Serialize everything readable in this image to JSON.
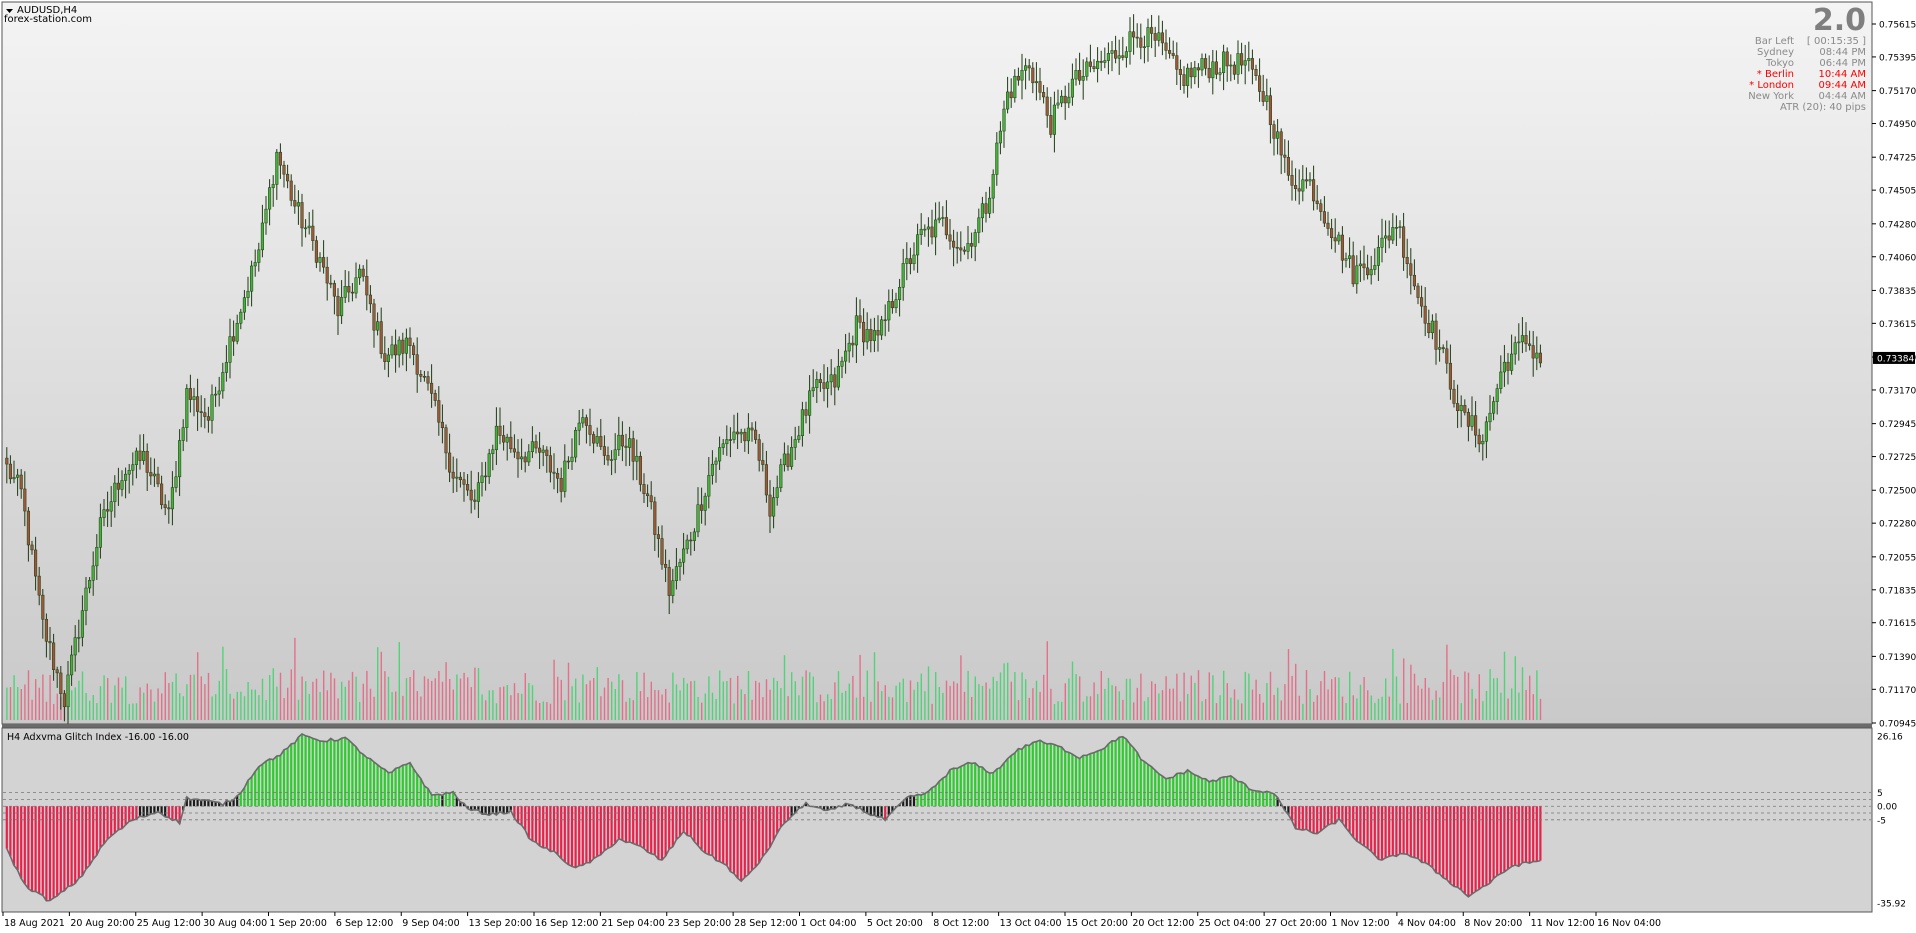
{
  "chart_title": {
    "symbol": "AUDUSD,H4",
    "site": "forex-station.com"
  },
  "info_panel": {
    "big_value": "2.0",
    "rows": [
      {
        "name": "Bar Left",
        "value": "[ 00:15:35 ]",
        "highlight": false
      },
      {
        "name": "Sydney",
        "value": "08:44 PM",
        "highlight": false
      },
      {
        "name": "Tokyo",
        "value": "06:44 PM",
        "highlight": false
      },
      {
        "name": "* Berlin",
        "value": "10:44 AM",
        "highlight": true
      },
      {
        "name": "* London",
        "value": "09:44 AM",
        "highlight": true
      },
      {
        "name": "New York",
        "value": "04:44 AM",
        "highlight": false
      }
    ],
    "atr": "ATR (20): 40 pips"
  },
  "colors": {
    "candle_up": "#46b03a",
    "candle_down": "#9a5a3a",
    "volume_up": "#3cd46a",
    "volume_down": "#e8607e",
    "hist_up": "#2ecb2e",
    "hist_down": "#e8204a",
    "current_price_bg": "#000000"
  },
  "chart_data": [
    {
      "type": "candlestick",
      "name": "price",
      "yticks": [
        "0.75615",
        "0.75395",
        "0.75170",
        "0.74950",
        "0.74725",
        "0.74505",
        "0.74280",
        "0.74060",
        "0.73835",
        "0.73615",
        "0.73390",
        "0.73170",
        "0.72945",
        "0.72725",
        "0.72500",
        "0.72280",
        "0.72055",
        "0.71835",
        "0.71615",
        "0.71390",
        "0.71170",
        "0.70945"
      ],
      "ylim": [
        0.70945,
        0.75615
      ],
      "current_price": "0.73384",
      "close_path": [
        {
          "bar": 0,
          "price": 0.7265
        },
        {
          "bar": 4,
          "price": 0.7248
        },
        {
          "bar": 10,
          "price": 0.716
        },
        {
          "bar": 16,
          "price": 0.711
        },
        {
          "bar": 21,
          "price": 0.717
        },
        {
          "bar": 26,
          "price": 0.7225
        },
        {
          "bar": 32,
          "price": 0.7262
        },
        {
          "bar": 38,
          "price": 0.7272
        },
        {
          "bar": 45,
          "price": 0.7232
        },
        {
          "bar": 50,
          "price": 0.7315
        },
        {
          "bar": 56,
          "price": 0.7298
        },
        {
          "bar": 62,
          "price": 0.735
        },
        {
          "bar": 70,
          "price": 0.741
        },
        {
          "bar": 75,
          "price": 0.7475
        },
        {
          "bar": 80,
          "price": 0.744
        },
        {
          "bar": 86,
          "price": 0.741
        },
        {
          "bar": 92,
          "price": 0.737
        },
        {
          "bar": 98,
          "price": 0.7395
        },
        {
          "bar": 105,
          "price": 0.734
        },
        {
          "bar": 112,
          "price": 0.7348
        },
        {
          "bar": 118,
          "price": 0.731
        },
        {
          "bar": 124,
          "price": 0.7262
        },
        {
          "bar": 130,
          "price": 0.724
        },
        {
          "bar": 136,
          "price": 0.729
        },
        {
          "bar": 142,
          "price": 0.7275
        },
        {
          "bar": 148,
          "price": 0.7275
        },
        {
          "bar": 154,
          "price": 0.7255
        },
        {
          "bar": 160,
          "price": 0.7305
        },
        {
          "bar": 166,
          "price": 0.727
        },
        {
          "bar": 172,
          "price": 0.7285
        },
        {
          "bar": 178,
          "price": 0.7245
        },
        {
          "bar": 184,
          "price": 0.7183
        },
        {
          "bar": 190,
          "price": 0.722
        },
        {
          "bar": 196,
          "price": 0.7268
        },
        {
          "bar": 202,
          "price": 0.729
        },
        {
          "bar": 208,
          "price": 0.7282
        },
        {
          "bar": 212,
          "price": 0.724
        },
        {
          "bar": 218,
          "price": 0.728
        },
        {
          "bar": 224,
          "price": 0.7315
        },
        {
          "bar": 230,
          "price": 0.7322
        },
        {
          "bar": 236,
          "price": 0.736
        },
        {
          "bar": 242,
          "price": 0.735
        },
        {
          "bar": 248,
          "price": 0.739
        },
        {
          "bar": 254,
          "price": 0.742
        },
        {
          "bar": 260,
          "price": 0.7428
        },
        {
          "bar": 266,
          "price": 0.741
        },
        {
          "bar": 272,
          "price": 0.744
        },
        {
          "bar": 278,
          "price": 0.7515
        },
        {
          "bar": 284,
          "price": 0.7535
        },
        {
          "bar": 290,
          "price": 0.7495
        },
        {
          "bar": 296,
          "price": 0.7522
        },
        {
          "bar": 302,
          "price": 0.7532
        },
        {
          "bar": 308,
          "price": 0.7542
        },
        {
          "bar": 314,
          "price": 0.7555
        },
        {
          "bar": 320,
          "price": 0.7548
        },
        {
          "bar": 326,
          "price": 0.7525
        },
        {
          "bar": 332,
          "price": 0.7532
        },
        {
          "bar": 338,
          "price": 0.7535
        },
        {
          "bar": 344,
          "price": 0.7535
        },
        {
          "bar": 350,
          "price": 0.751
        },
        {
          "bar": 356,
          "price": 0.7458
        },
        {
          "bar": 362,
          "price": 0.7455
        },
        {
          "bar": 368,
          "price": 0.7425
        },
        {
          "bar": 374,
          "price": 0.7395
        },
        {
          "bar": 380,
          "price": 0.7405
        },
        {
          "bar": 386,
          "price": 0.743
        },
        {
          "bar": 392,
          "price": 0.738
        },
        {
          "bar": 398,
          "price": 0.7345
        },
        {
          "bar": 404,
          "price": 0.73
        },
        {
          "bar": 410,
          "price": 0.7285
        },
        {
          "bar": 416,
          "price": 0.7335
        },
        {
          "bar": 422,
          "price": 0.735
        },
        {
          "bar": 426,
          "price": 0.7338
        }
      ],
      "volume_max": 100
    },
    {
      "type": "bar",
      "name": "H4 Adxvma Glitch Index -16.00 -16.00",
      "title": "H4 Adxvma Glitch Index -16.00 -16.00",
      "yticks": [
        "26.16",
        "5",
        "0.00",
        "-5",
        "-35.92"
      ],
      "levels": [
        5,
        2.5,
        0,
        -2.5,
        -5
      ],
      "ylim": [
        -35.92,
        26.16
      ],
      "value_path": [
        {
          "bar": 0,
          "value": -16
        },
        {
          "bar": 5,
          "value": -29
        },
        {
          "bar": 12,
          "value": -35
        },
        {
          "bar": 20,
          "value": -27
        },
        {
          "bar": 28,
          "value": -12
        },
        {
          "bar": 35,
          "value": -5
        },
        {
          "bar": 42,
          "value": -2
        },
        {
          "bar": 48,
          "value": -6
        },
        {
          "bar": 50,
          "value": 3
        },
        {
          "bar": 55,
          "value": 2
        },
        {
          "bar": 60,
          "value": 0.8
        },
        {
          "bar": 64,
          "value": 3.5
        },
        {
          "bar": 70,
          "value": 15
        },
        {
          "bar": 76,
          "value": 19
        },
        {
          "bar": 82,
          "value": 26
        },
        {
          "bar": 88,
          "value": 24
        },
        {
          "bar": 94,
          "value": 25
        },
        {
          "bar": 100,
          "value": 18
        },
        {
          "bar": 106,
          "value": 12
        },
        {
          "bar": 112,
          "value": 16
        },
        {
          "bar": 118,
          "value": 4
        },
        {
          "bar": 124,
          "value": 5
        },
        {
          "bar": 128,
          "value": -1
        },
        {
          "bar": 134,
          "value": -3
        },
        {
          "bar": 140,
          "value": -2
        },
        {
          "bar": 146,
          "value": -13
        },
        {
          "bar": 152,
          "value": -17
        },
        {
          "bar": 158,
          "value": -23
        },
        {
          "bar": 164,
          "value": -19
        },
        {
          "bar": 170,
          "value": -12
        },
        {
          "bar": 176,
          "value": -15
        },
        {
          "bar": 182,
          "value": -20
        },
        {
          "bar": 188,
          "value": -9
        },
        {
          "bar": 194,
          "value": -17
        },
        {
          "bar": 200,
          "value": -22
        },
        {
          "bar": 204,
          "value": -28
        },
        {
          "bar": 210,
          "value": -19
        },
        {
          "bar": 216,
          "value": -6
        },
        {
          "bar": 222,
          "value": 1
        },
        {
          "bar": 228,
          "value": -2
        },
        {
          "bar": 234,
          "value": 1
        },
        {
          "bar": 240,
          "value": -3
        },
        {
          "bar": 244,
          "value": -5
        },
        {
          "bar": 250,
          "value": 3
        },
        {
          "bar": 256,
          "value": 5
        },
        {
          "bar": 262,
          "value": 13
        },
        {
          "bar": 268,
          "value": 16
        },
        {
          "bar": 274,
          "value": 12
        },
        {
          "bar": 280,
          "value": 20
        },
        {
          "bar": 286,
          "value": 24
        },
        {
          "bar": 292,
          "value": 22
        },
        {
          "bar": 298,
          "value": 18
        },
        {
          "bar": 304,
          "value": 21
        },
        {
          "bar": 310,
          "value": 26
        },
        {
          "bar": 316,
          "value": 16
        },
        {
          "bar": 322,
          "value": 10
        },
        {
          "bar": 328,
          "value": 13
        },
        {
          "bar": 334,
          "value": 9
        },
        {
          "bar": 340,
          "value": 11
        },
        {
          "bar": 346,
          "value": 6
        },
        {
          "bar": 352,
          "value": 5
        },
        {
          "bar": 358,
          "value": -8
        },
        {
          "bar": 364,
          "value": -10
        },
        {
          "bar": 370,
          "value": -5
        },
        {
          "bar": 376,
          "value": -14
        },
        {
          "bar": 382,
          "value": -20
        },
        {
          "bar": 388,
          "value": -17
        },
        {
          "bar": 394,
          "value": -21
        },
        {
          "bar": 400,
          "value": -27
        },
        {
          "bar": 406,
          "value": -33
        },
        {
          "bar": 412,
          "value": -28
        },
        {
          "bar": 418,
          "value": -22
        },
        {
          "bar": 426,
          "value": -20
        }
      ]
    }
  ],
  "x_axis": {
    "labels": [
      "18 Aug 2021",
      "20 Aug 20:00",
      "25 Aug 12:00",
      "30 Aug 04:00",
      "1 Sep 20:00",
      "6 Sep 12:00",
      "9 Sep 04:00",
      "13 Sep 20:00",
      "16 Sep 12:00",
      "21 Sep 04:00",
      "23 Sep 20:00",
      "28 Sep 12:00",
      "1 Oct 04:00",
      "5 Oct 20:00",
      "8 Oct 12:00",
      "13 Oct 04:00",
      "15 Oct 20:00",
      "20 Oct 12:00",
      "25 Oct 04:00",
      "27 Oct 20:00",
      "1 Nov 12:00",
      "4 Nov 04:00",
      "8 Nov 20:00",
      "11 Nov 12:00",
      "16 Nov 04:00"
    ]
  }
}
